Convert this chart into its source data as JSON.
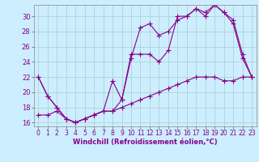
{
  "title": "",
  "xlabel": "Windchill (Refroidissement éolien,°C)",
  "bg_color": "#cceeff",
  "line_color": "#880088",
  "grid_color": "#aacccc",
  "line1": {
    "x": [
      0,
      1,
      2,
      3,
      4,
      5,
      6,
      7,
      8,
      9,
      10,
      11,
      12,
      13,
      14,
      15,
      16,
      17,
      18,
      19,
      20,
      21,
      22,
      23
    ],
    "y": [
      22,
      19.5,
      18,
      16.5,
      16,
      16.5,
      17,
      17.5,
      21.5,
      19,
      25,
      25,
      25,
      24,
      25.5,
      30,
      30,
      31,
      30.5,
      31.5,
      30.5,
      29.5,
      25,
      22
    ]
  },
  "line2": {
    "x": [
      0,
      1,
      2,
      3,
      4,
      5,
      6,
      7,
      8,
      9,
      10,
      11,
      12,
      13,
      14,
      15,
      16,
      17,
      18,
      19,
      20,
      21,
      22,
      23
    ],
    "y": [
      22,
      19.5,
      18,
      16.5,
      16,
      16.5,
      17,
      17.5,
      17.5,
      19,
      24.5,
      28.5,
      29,
      27.5,
      28,
      29.5,
      30,
      31,
      30,
      31.5,
      30.5,
      29,
      24.5,
      22
    ]
  },
  "line3": {
    "x": [
      0,
      1,
      2,
      3,
      4,
      5,
      6,
      7,
      8,
      9,
      10,
      11,
      12,
      13,
      14,
      15,
      16,
      17,
      18,
      19,
      20,
      21,
      22,
      23
    ],
    "y": [
      17,
      17,
      17.5,
      16.5,
      16,
      16.5,
      17,
      17.5,
      17.5,
      18,
      18.5,
      19,
      19.5,
      20,
      20.5,
      21,
      21.5,
      22,
      22,
      22,
      21.5,
      21.5,
      22,
      22
    ]
  },
  "xlim": [
    -0.5,
    23.5
  ],
  "ylim": [
    15.5,
    31.5
  ],
  "yticks": [
    16,
    18,
    20,
    22,
    24,
    26,
    28,
    30
  ],
  "xticks": [
    0,
    1,
    2,
    3,
    4,
    5,
    6,
    7,
    8,
    9,
    10,
    11,
    12,
    13,
    14,
    15,
    16,
    17,
    18,
    19,
    20,
    21,
    22,
    23
  ],
  "marker": "+",
  "markersize": 4,
  "linewidth": 0.8
}
